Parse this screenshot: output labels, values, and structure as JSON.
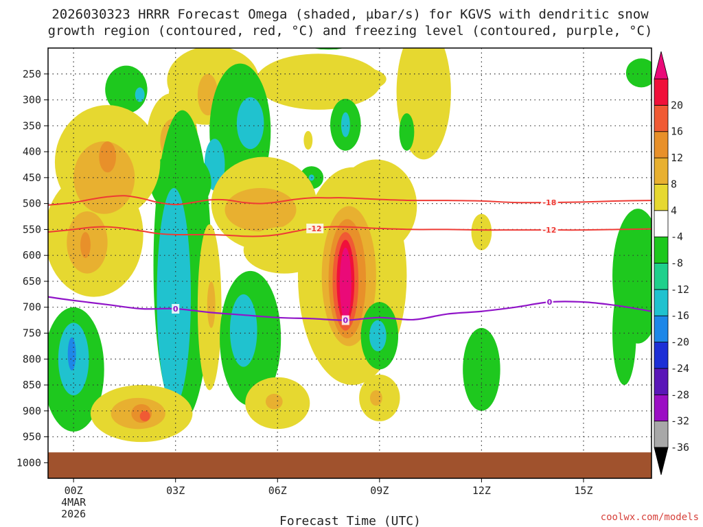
{
  "chart_data": {
    "type": "heatmap",
    "title_line1": "2026030323 HRRR Forecast Omega (shaded, µbar/s) for KGVS with dendritic snow",
    "title_line2": "growth region (contoured, red, °C) and freezing level (contoured, purple, °C)",
    "xlabel": "Forecast Time (UTC)",
    "credit": "coolwx.com/models",
    "x_range": [
      -0.75,
      17.0
    ],
    "y_range": [
      200,
      1030
    ],
    "x_ticks": [
      {
        "value": 0,
        "label": "00Z",
        "sub1": "4MAR",
        "sub2": "2026"
      },
      {
        "value": 3,
        "label": "03Z",
        "sub1": "",
        "sub2": ""
      },
      {
        "value": 6,
        "label": "06Z",
        "sub1": "",
        "sub2": ""
      },
      {
        "value": 9,
        "label": "09Z",
        "sub1": "",
        "sub2": ""
      },
      {
        "value": 12,
        "label": "12Z",
        "sub1": "",
        "sub2": ""
      },
      {
        "value": 15,
        "label": "15Z",
        "sub1": "",
        "sub2": ""
      }
    ],
    "y_ticks": [
      {
        "value": 250,
        "label": "250"
      },
      {
        "value": 300,
        "label": "300"
      },
      {
        "value": 350,
        "label": "350"
      },
      {
        "value": 400,
        "label": "400"
      },
      {
        "value": 450,
        "label": "450"
      },
      {
        "value": 500,
        "label": "500"
      },
      {
        "value": 550,
        "label": "550"
      },
      {
        "value": 600,
        "label": "600"
      },
      {
        "value": 650,
        "label": "650"
      },
      {
        "value": 700,
        "label": "700"
      },
      {
        "value": 750,
        "label": "750"
      },
      {
        "value": 800,
        "label": "800"
      },
      {
        "value": 850,
        "label": "850"
      },
      {
        "value": 900,
        "label": "900"
      },
      {
        "value": 950,
        "label": "950"
      },
      {
        "value": 1000,
        "label": "1000"
      }
    ],
    "colorbar": {
      "bins": [
        {
          "color": "#a8a8a8"
        },
        {
          "color": "#9b0ec4"
        },
        {
          "color": "#5a16b8"
        },
        {
          "color": "#1c2fd6"
        },
        {
          "color": "#1e87e8"
        },
        {
          "color": "#20c2cf"
        },
        {
          "color": "#20d08c"
        },
        {
          "color": "#1ec81e"
        },
        {
          "color": "#ffffff"
        },
        {
          "color": "#e6d830"
        },
        {
          "color": "#e8b030"
        },
        {
          "color": "#e8902a"
        },
        {
          "color": "#f05a34"
        },
        {
          "color": "#f0103a"
        }
      ],
      "low_color": "#000000",
      "high_color": "#ea0a78",
      "tick_labels": [
        "-36",
        "-32",
        "-28",
        "-24",
        "-20",
        "-16",
        "-12",
        "-8",
        "-4",
        "4",
        "8",
        "12",
        "16",
        "20"
      ]
    },
    "ground": {
      "from": 980,
      "color": "#a0522d"
    },
    "omega_blobs": [
      {
        "x": 1.55,
        "y": 280,
        "rx": 0.62,
        "ry": 46,
        "level": "green"
      },
      {
        "x": 1.95,
        "y": 290,
        "rx": 0.14,
        "ry": 14,
        "level": "teal"
      },
      {
        "x": 7.5,
        "y": 197,
        "rx": 0.5,
        "ry": 6,
        "level": "green"
      },
      {
        "x": 16.7,
        "y": 248,
        "rx": 0.45,
        "ry": 28,
        "level": "green"
      },
      {
        "x": 4.1,
        "y": 262,
        "rx": 1.35,
        "ry": 66,
        "level": "yellow"
      },
      {
        "x": 3.9,
        "y": 290,
        "rx": 1.1,
        "ry": 58,
        "level": "yellow"
      },
      {
        "x": 3.95,
        "y": 290,
        "rx": 0.3,
        "ry": 40,
        "level": "orange8"
      },
      {
        "x": 7.2,
        "y": 265,
        "rx": 1.85,
        "ry": 54,
        "level": "yellow"
      },
      {
        "x": 8.2,
        "y": 260,
        "rx": 1.0,
        "ry": 25,
        "level": "yellow"
      },
      {
        "x": 10.3,
        "y": 285,
        "rx": 0.8,
        "ry": 130,
        "level": "yellow"
      },
      {
        "x": 6.9,
        "y": 378,
        "rx": 0.13,
        "ry": 18,
        "level": "yellow"
      },
      {
        "x": 8.0,
        "y": 348,
        "rx": 0.45,
        "ry": 50,
        "level": "green"
      },
      {
        "x": 8.0,
        "y": 348,
        "rx": 0.13,
        "ry": 24,
        "level": "teal"
      },
      {
        "x": 9.8,
        "y": 362,
        "rx": 0.22,
        "ry": 36,
        "level": "green"
      },
      {
        "x": 7.0,
        "y": 450,
        "rx": 0.35,
        "ry": 22,
        "level": "green"
      },
      {
        "x": 7.0,
        "y": 450,
        "rx": 0.08,
        "ry": 6,
        "level": "teal"
      },
      {
        "x": 2.9,
        "y": 375,
        "rx": 0.75,
        "ry": 88,
        "level": "yellow"
      },
      {
        "x": 2.95,
        "y": 378,
        "rx": 0.4,
        "ry": 42,
        "level": "orange8"
      },
      {
        "x": 2.98,
        "y": 381,
        "rx": 0.06,
        "ry": 6,
        "level": "orange16"
      },
      {
        "x": 4.9,
        "y": 360,
        "rx": 0.9,
        "ry": 130,
        "level": "green"
      },
      {
        "x": 5.2,
        "y": 345,
        "rx": 0.4,
        "ry": 50,
        "level": "teal"
      },
      {
        "x": 4.15,
        "y": 425,
        "rx": 0.3,
        "ry": 50,
        "level": "teal"
      },
      {
        "x": 3.15,
        "y": 460,
        "rx": 0.9,
        "ry": 60,
        "level": "green"
      },
      {
        "x": 3.2,
        "y": 620,
        "rx": 0.85,
        "ry": 300,
        "level": "green"
      },
      {
        "x": 2.95,
        "y": 680,
        "rx": 0.5,
        "ry": 210,
        "level": "teal"
      },
      {
        "x": 2.0,
        "y": 420,
        "rx": 0.5,
        "ry": 70,
        "level": "green"
      },
      {
        "x": 2.0,
        "y": 435,
        "rx": 0.15,
        "ry": 25,
        "level": "teal"
      },
      {
        "x": 1.0,
        "y": 420,
        "rx": 1.55,
        "ry": 110,
        "level": "yellow"
      },
      {
        "x": 0.6,
        "y": 560,
        "rx": 1.45,
        "ry": 120,
        "level": "yellow"
      },
      {
        "x": 0.9,
        "y": 450,
        "rx": 0.9,
        "ry": 70,
        "level": "orange8"
      },
      {
        "x": 1.0,
        "y": 410,
        "rx": 0.25,
        "ry": 30,
        "level": "orange12"
      },
      {
        "x": 0.4,
        "y": 575,
        "rx": 0.6,
        "ry": 60,
        "level": "orange8"
      },
      {
        "x": 0.35,
        "y": 580,
        "rx": 0.15,
        "ry": 25,
        "level": "orange12"
      },
      {
        "x": 0.0,
        "y": 820,
        "rx": 0.9,
        "ry": 120,
        "level": "green"
      },
      {
        "x": 0.0,
        "y": 800,
        "rx": 0.45,
        "ry": 70,
        "level": "teal"
      },
      {
        "x": -0.05,
        "y": 790,
        "rx": 0.12,
        "ry": 32,
        "level": "blue"
      },
      {
        "x": 2.0,
        "y": 905,
        "rx": 1.5,
        "ry": 55,
        "level": "yellow"
      },
      {
        "x": 1.9,
        "y": 905,
        "rx": 0.8,
        "ry": 30,
        "level": "orange8"
      },
      {
        "x": 2.0,
        "y": 905,
        "rx": 0.3,
        "ry": 18,
        "level": "orange12"
      },
      {
        "x": 2.1,
        "y": 910,
        "rx": 0.15,
        "ry": 10,
        "level": "orange16"
      },
      {
        "x": 4.0,
        "y": 700,
        "rx": 0.35,
        "ry": 160,
        "level": "yellow"
      },
      {
        "x": 4.05,
        "y": 695,
        "rx": 0.12,
        "ry": 45,
        "level": "orange8"
      },
      {
        "x": 5.6,
        "y": 500,
        "rx": 1.55,
        "ry": 90,
        "level": "yellow"
      },
      {
        "x": 5.5,
        "y": 512,
        "rx": 1.05,
        "ry": 42,
        "level": "orange8"
      },
      {
        "x": 6.2,
        "y": 590,
        "rx": 1.2,
        "ry": 45,
        "level": "yellow"
      },
      {
        "x": 5.2,
        "y": 760,
        "rx": 0.9,
        "ry": 130,
        "level": "green"
      },
      {
        "x": 5.0,
        "y": 745,
        "rx": 0.4,
        "ry": 70,
        "level": "teal"
      },
      {
        "x": 6.0,
        "y": 885,
        "rx": 0.95,
        "ry": 50,
        "level": "yellow"
      },
      {
        "x": 5.9,
        "y": 882,
        "rx": 0.25,
        "ry": 15,
        "level": "orange8"
      },
      {
        "x": 8.2,
        "y": 640,
        "rx": 1.6,
        "ry": 210,
        "level": "yellow"
      },
      {
        "x": 8.9,
        "y": 505,
        "rx": 1.2,
        "ry": 90,
        "level": "yellow"
      },
      {
        "x": 8.1,
        "y": 640,
        "rx": 0.8,
        "ry": 135,
        "level": "orange8"
      },
      {
        "x": 8.05,
        "y": 645,
        "rx": 0.55,
        "ry": 115,
        "level": "orange12"
      },
      {
        "x": 8.0,
        "y": 650,
        "rx": 0.38,
        "ry": 95,
        "level": "orange16"
      },
      {
        "x": 8.0,
        "y": 650,
        "rx": 0.26,
        "ry": 80,
        "level": "red"
      },
      {
        "x": 8.0,
        "y": 655,
        "rx": 0.17,
        "ry": 70,
        "level": "magenta"
      },
      {
        "x": 9.0,
        "y": 755,
        "rx": 0.55,
        "ry": 65,
        "level": "green"
      },
      {
        "x": 8.95,
        "y": 755,
        "rx": 0.25,
        "ry": 30,
        "level": "teal"
      },
      {
        "x": 9.0,
        "y": 875,
        "rx": 0.6,
        "ry": 45,
        "level": "yellow"
      },
      {
        "x": 8.9,
        "y": 875,
        "rx": 0.18,
        "ry": 15,
        "level": "orange8"
      },
      {
        "x": 12.0,
        "y": 555,
        "rx": 0.3,
        "ry": 35,
        "level": "yellow"
      },
      {
        "x": 12.0,
        "y": 820,
        "rx": 0.55,
        "ry": 80,
        "level": "green"
      },
      {
        "x": 16.6,
        "y": 640,
        "rx": 0.75,
        "ry": 130,
        "level": "green"
      },
      {
        "x": 16.2,
        "y": 750,
        "rx": 0.35,
        "ry": 100,
        "level": "green"
      }
    ],
    "contours": [
      {
        "name": "red-contour-minus-18",
        "color": "#ee3a34",
        "width": 2,
        "points": [
          [
            -0.75,
            503
          ],
          [
            0,
            498
          ],
          [
            0.5,
            492
          ],
          [
            1.0,
            487
          ],
          [
            1.5,
            485
          ],
          [
            2.0,
            490
          ],
          [
            2.5,
            498
          ],
          [
            3.0,
            502
          ],
          [
            3.5,
            498
          ],
          [
            4.0,
            493
          ],
          [
            4.5,
            493
          ],
          [
            5.0,
            498
          ],
          [
            5.5,
            500
          ],
          [
            6.0,
            497
          ],
          [
            6.5,
            492
          ],
          [
            7.0,
            489
          ],
          [
            7.5,
            489
          ],
          [
            8.0,
            489
          ],
          [
            9.0,
            492
          ],
          [
            10.0,
            494
          ],
          [
            11.0,
            494
          ],
          [
            12.0,
            495
          ],
          [
            13.0,
            498
          ],
          [
            14.0,
            498
          ],
          [
            15.0,
            497
          ],
          [
            16.0,
            495
          ],
          [
            17.0,
            494
          ]
        ],
        "label": "-18",
        "label_at": [
          14.0,
          498
        ]
      },
      {
        "name": "red-contour-minus-12",
        "color": "#ee3a34",
        "width": 2,
        "points": [
          [
            -0.75,
            555
          ],
          [
            0,
            550
          ],
          [
            0.5,
            546
          ],
          [
            1.0,
            545
          ],
          [
            1.5,
            548
          ],
          [
            2.0,
            553
          ],
          [
            2.5,
            558
          ],
          [
            3.0,
            560
          ],
          [
            4.0,
            560
          ],
          [
            4.5,
            561
          ],
          [
            5.0,
            563
          ],
          [
            5.5,
            563
          ],
          [
            6.0,
            560
          ],
          [
            6.5,
            554
          ],
          [
            7.0,
            548
          ],
          [
            7.5,
            545
          ],
          [
            8.0,
            545
          ],
          [
            9.0,
            548
          ],
          [
            10.0,
            550
          ],
          [
            11.0,
            550
          ],
          [
            12.0,
            551
          ],
          [
            13.0,
            551
          ],
          [
            14.0,
            551
          ],
          [
            15.0,
            551
          ],
          [
            16.0,
            550
          ],
          [
            17.0,
            549
          ]
        ],
        "label": "-12",
        "label_at": [
          14.0,
          551
        ]
      },
      {
        "name": "purple-contour-freezing-level",
        "color": "#9014c8",
        "width": 2.2,
        "points": [
          [
            -0.75,
            680
          ],
          [
            0,
            687
          ],
          [
            1.0,
            695
          ],
          [
            2.0,
            703
          ],
          [
            3.0,
            703
          ],
          [
            4.0,
            710
          ],
          [
            5.0,
            715
          ],
          [
            6.0,
            720
          ],
          [
            7.0,
            722
          ],
          [
            8.0,
            725
          ],
          [
            9.0,
            720
          ],
          [
            10.0,
            724
          ],
          [
            11.0,
            713
          ],
          [
            12.0,
            708
          ],
          [
            13.0,
            700
          ],
          [
            14.0,
            690
          ],
          [
            15.0,
            690
          ],
          [
            16.0,
            697
          ],
          [
            17.0,
            708
          ]
        ],
        "label": "0",
        "label_at": [
          14.0,
          690
        ]
      }
    ],
    "contour_labels": [
      {
        "name": "label-minus-12-early",
        "text": "-12",
        "x": 7.1,
        "y": 548,
        "color": "#ee3a34"
      },
      {
        "name": "label-0-03z",
        "text": "0",
        "x": 3.0,
        "y": 703,
        "color": "#9014c8"
      },
      {
        "name": "label-0-08z",
        "text": "0",
        "x": 8.0,
        "y": 725,
        "color": "#9014c8"
      }
    ]
  }
}
